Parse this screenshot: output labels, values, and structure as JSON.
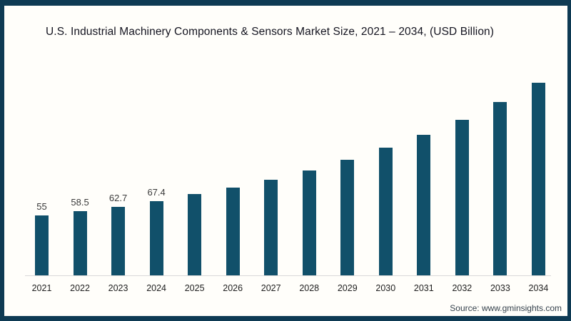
{
  "header": {
    "title": "U.S. Industrial Machinery Components & Sensors Market Size, 2021 – 2034, (USD Billion)"
  },
  "footer": {
    "source": "Source: www.gminsights.com"
  },
  "colors": {
    "frame": "#0e3a53",
    "bar": "#11506a",
    "axis_line": "#d9d9d9",
    "background": "#fffefa"
  },
  "chart_data": {
    "type": "bar",
    "title": "U.S. Industrial Machinery Components & Sensors Market Size, 2021 – 2034, (USD Billion)",
    "unit": "USD Billion",
    "categories": [
      "2021",
      "2022",
      "2023",
      "2024",
      "2025",
      "2026",
      "2027",
      "2028",
      "2029",
      "2030",
      "2031",
      "2032",
      "2033",
      "2034"
    ],
    "values": [
      55,
      58.5,
      62.7,
      67.4,
      74,
      80.3,
      87.5,
      95.8,
      105.5,
      116.3,
      128.3,
      141.7,
      158,
      175.6
    ],
    "data_labels": [
      "55",
      "58.5",
      "62.7",
      "67.4",
      "",
      "",
      "",
      "",
      "",
      "",
      "",
      "",
      "",
      ""
    ],
    "xlabel": "",
    "ylabel": "",
    "ylim": [
      0,
      185
    ],
    "grid": false,
    "legend": false,
    "source": "Source: www.gminsights.com"
  }
}
